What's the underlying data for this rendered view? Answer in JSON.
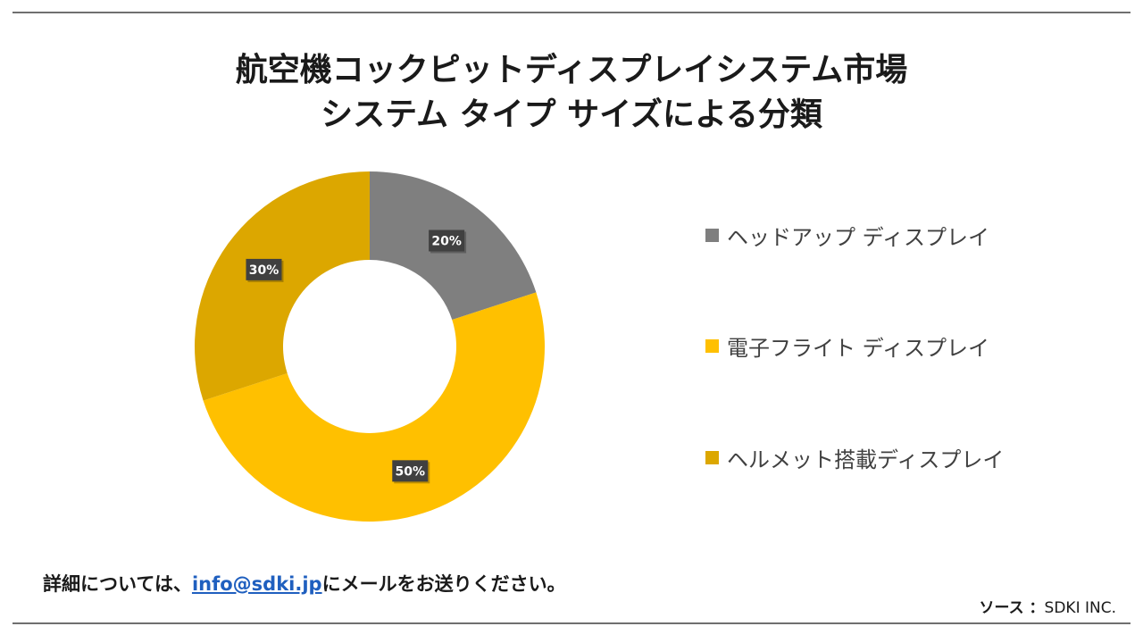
{
  "title": {
    "line1": "航空機コックピットディスプレイシステム市場",
    "line2": "システム タイプ サイズによる分類"
  },
  "chart_data": {
    "type": "pie",
    "subtype": "donut",
    "series": [
      {
        "label": "ヘッドアップ ディスプレイ",
        "value": 20,
        "color": "#7f7f7f",
        "data_label": "20%"
      },
      {
        "label": "電子フライト ディスプレイ",
        "value": 50,
        "color": "#ffc000",
        "data_label": "50%"
      },
      {
        "label": "ヘルメット搭載ディスプレイ",
        "value": 30,
        "color": "#dca700",
        "data_label": "30%"
      }
    ],
    "legend_position": "right"
  },
  "footer": {
    "note_prefix": "詳細については、",
    "email": "info@sdki.jp",
    "note_suffix": "にメールをお送りください。",
    "source_label": "ソース ：",
    "source_value": "SDKI INC."
  }
}
